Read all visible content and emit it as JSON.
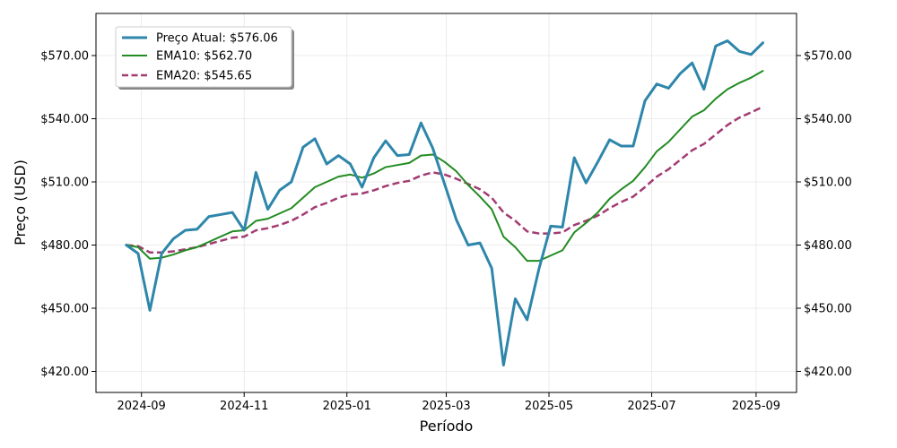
{
  "chart_data": {
    "type": "line",
    "xlabel": "Período",
    "ylabel": "Preço (USD)",
    "x_ticks": [
      "2024-09",
      "2024-11",
      "2025-01",
      "2025-03",
      "2025-05",
      "2025-07",
      "2025-09"
    ],
    "y_ticks": [
      "$420.00",
      "$450.00",
      "$480.00",
      "$510.00",
      "$540.00",
      "$570.00"
    ],
    "ylim": [
      410,
      590
    ],
    "xlim": [
      "2024-08-05",
      "2025-09-25"
    ],
    "grid": true,
    "legend_position": "top-left",
    "dual_y_axis": true,
    "x": [
      "2024-08-23",
      "2024-08-30",
      "2024-09-06",
      "2024-09-13",
      "2024-09-20",
      "2024-09-27",
      "2024-10-04",
      "2024-10-11",
      "2024-10-18",
      "2024-10-25",
      "2024-11-01",
      "2024-11-08",
      "2024-11-15",
      "2024-11-22",
      "2024-11-29",
      "2024-12-06",
      "2024-12-13",
      "2024-12-20",
      "2024-12-27",
      "2025-01-03",
      "2025-01-10",
      "2025-01-17",
      "2025-01-24",
      "2025-01-31",
      "2025-02-07",
      "2025-02-14",
      "2025-02-21",
      "2025-02-28",
      "2025-03-07",
      "2025-03-14",
      "2025-03-21",
      "2025-03-28",
      "2025-04-04",
      "2025-04-11",
      "2025-04-18",
      "2025-04-25",
      "2025-05-02",
      "2025-05-09",
      "2025-05-16",
      "2025-05-23",
      "2025-05-30",
      "2025-06-06",
      "2025-06-13",
      "2025-06-20",
      "2025-06-27",
      "2025-07-04",
      "2025-07-11",
      "2025-07-18",
      "2025-07-25",
      "2025-08-01",
      "2025-08-08",
      "2025-08-15",
      "2025-08-22",
      "2025-08-29",
      "2025-09-05"
    ],
    "series": [
      {
        "name": "Preço Atual: $576.06",
        "color": "#2E86AB",
        "style": "solid",
        "values": [
          480.0,
          476.0,
          449.0,
          476.0,
          483.0,
          487.0,
          487.5,
          493.5,
          494.5,
          495.5,
          487.0,
          514.5,
          497.0,
          506.0,
          510.0,
          526.5,
          530.5,
          518.5,
          522.5,
          518.5,
          507.5,
          521.5,
          529.5,
          522.5,
          523.0,
          538.0,
          526.0,
          509.0,
          492.0,
          480.0,
          481.0,
          469.0,
          423.0,
          454.5,
          444.5,
          468.5,
          489.0,
          488.5,
          521.5,
          509.5,
          519.5,
          530.0,
          527.0,
          527.0,
          548.5,
          556.5,
          554.5,
          561.5,
          566.5,
          554.0,
          574.5,
          577.0,
          572.0,
          570.5,
          576.06
        ]
      },
      {
        "name": "EMA10: $562.70",
        "color": "#228B22",
        "style": "solid",
        "values": [
          480.0,
          479.0,
          473.5,
          474.0,
          475.5,
          477.5,
          479.0,
          481.5,
          484.0,
          486.5,
          487.0,
          491.5,
          492.5,
          495.0,
          497.5,
          502.5,
          507.5,
          510.0,
          512.5,
          513.5,
          512.0,
          514.0,
          517.0,
          518.0,
          519.0,
          522.5,
          523.0,
          519.5,
          515.0,
          508.5,
          503.0,
          497.0,
          484.0,
          479.0,
          472.5,
          472.5,
          475.0,
          477.5,
          486.0,
          490.5,
          495.5,
          502.0,
          506.5,
          510.5,
          517.0,
          524.5,
          529.0,
          535.0,
          541.0,
          544.0,
          549.5,
          554.0,
          557.0,
          559.5,
          562.7
        ]
      },
      {
        "name": "EMA20: $545.65",
        "color": "#A23B72",
        "style": "dashed",
        "values": [
          480.0,
          479.5,
          476.5,
          476.5,
          477.0,
          478.0,
          479.0,
          480.5,
          482.0,
          483.5,
          484.0,
          487.0,
          488.0,
          489.5,
          491.5,
          494.5,
          498.0,
          500.0,
          502.5,
          504.0,
          504.5,
          506.0,
          508.0,
          509.5,
          510.5,
          513.0,
          514.5,
          513.5,
          511.5,
          509.0,
          506.5,
          502.5,
          495.5,
          491.5,
          486.5,
          485.5,
          485.5,
          486.0,
          489.5,
          491.5,
          494.0,
          497.5,
          500.5,
          503.0,
          507.5,
          512.5,
          516.0,
          520.5,
          525.0,
          528.0,
          532.5,
          537.0,
          540.5,
          543.0,
          545.65
        ]
      }
    ]
  }
}
